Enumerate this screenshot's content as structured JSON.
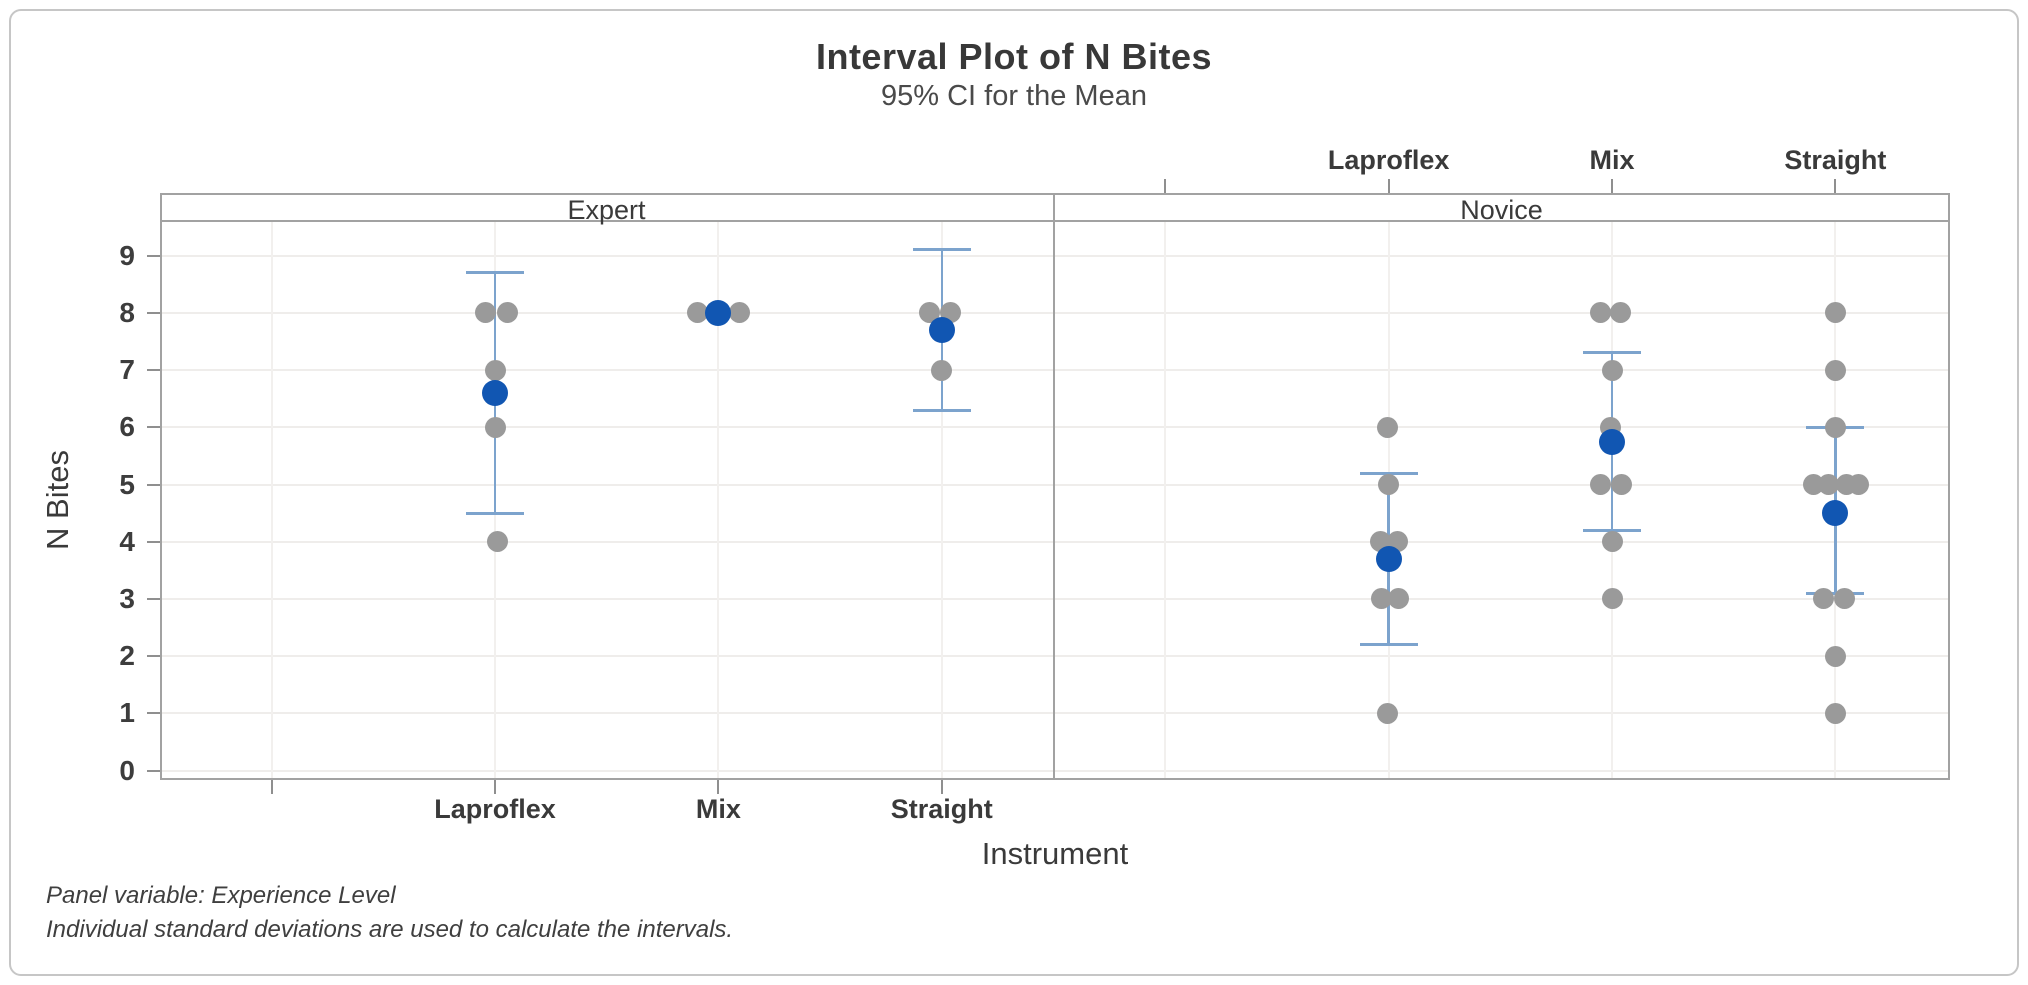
{
  "figure": {
    "title": "Interval Plot of N Bites",
    "subtitle": "95% CI for the Mean"
  },
  "chart_data": {
    "type": "scatter",
    "variant": "interval-plot-95ci-paneled",
    "title": "Interval Plot of N Bites",
    "subtitle": "95% CI for the Mean",
    "ylabel": "N Bites",
    "xlabel": "Instrument",
    "ylim": [
      0,
      9.6
    ],
    "yticks": [
      0,
      1,
      2,
      3,
      4,
      5,
      6,
      7,
      8,
      9
    ],
    "grid": "light horizontal gridlines at integers, faint vertical gridlines at category slots",
    "legend_position": "none",
    "panels": [
      "Expert",
      "Novice"
    ],
    "panel_variable": "Experience Level",
    "categories": [
      "Laproflex",
      "Mix",
      "Straight"
    ],
    "footnotes": [
      "Panel variable: Experience Level",
      "Individual standard deviations are used to calculate the intervals."
    ],
    "groups": [
      {
        "panel": "Expert",
        "instrument": "Laproflex",
        "points": [
          {
            "v": 8,
            "dx": -10
          },
          {
            "v": 8,
            "dx": 12
          },
          {
            "v": 7,
            "dx": 0
          },
          {
            "v": 6,
            "dx": 0
          },
          {
            "v": 4,
            "dx": 2
          }
        ],
        "mean": 6.6,
        "ci": [
          4.5,
          8.7
        ]
      },
      {
        "panel": "Expert",
        "instrument": "Mix",
        "points": [
          {
            "v": 8,
            "dx": -21
          },
          {
            "v": 8,
            "dx": 21
          }
        ],
        "mean": 8,
        "ci": [
          8,
          8
        ]
      },
      {
        "panel": "Expert",
        "instrument": "Straight",
        "points": [
          {
            "v": 8,
            "dx": -12
          },
          {
            "v": 8,
            "dx": 9
          },
          {
            "v": 7,
            "dx": 0
          }
        ],
        "mean": 7.7,
        "ci": [
          6.3,
          9.1
        ]
      },
      {
        "panel": "Novice",
        "instrument": "Laproflex",
        "points": [
          {
            "v": 6,
            "dx": -1
          },
          {
            "v": 5,
            "dx": 0
          },
          {
            "v": 4,
            "dx": -8
          },
          {
            "v": 4,
            "dx": 9
          },
          {
            "v": 3,
            "dx": -7
          },
          {
            "v": 3,
            "dx": 10
          },
          {
            "v": 1,
            "dx": -1
          }
        ],
        "mean": 3.7,
        "ci": [
          2.2,
          5.2
        ]
      },
      {
        "panel": "Novice",
        "instrument": "Mix",
        "points": [
          {
            "v": 8,
            "dx": -12
          },
          {
            "v": 8,
            "dx": 8
          },
          {
            "v": 7,
            "dx": 0
          },
          {
            "v": 6,
            "dx": -2
          },
          {
            "v": 5,
            "dx": -12
          },
          {
            "v": 5,
            "dx": 9
          },
          {
            "v": 4,
            "dx": 0
          },
          {
            "v": 3,
            "dx": 0
          }
        ],
        "mean": 5.75,
        "ci": [
          4.2,
          7.3
        ]
      },
      {
        "panel": "Novice",
        "instrument": "Straight",
        "points": [
          {
            "v": 8,
            "dx": 0
          },
          {
            "v": 7,
            "dx": 0
          },
          {
            "v": 6,
            "dx": 0
          },
          {
            "v": 5,
            "dx": -22
          },
          {
            "v": 5,
            "dx": -7
          },
          {
            "v": 5,
            "dx": 11
          },
          {
            "v": 5,
            "dx": 23
          },
          {
            "v": 3,
            "dx": -12
          },
          {
            "v": 3,
            "dx": 9
          },
          {
            "v": 2,
            "dx": 0
          },
          {
            "v": 1,
            "dx": 0
          }
        ],
        "mean": 4.5,
        "ci": [
          3.1,
          6.0
        ]
      }
    ],
    "colors": {
      "mean_point": "#1156b2",
      "data_point": "#9a9a9a",
      "interval_bar": "#7ca3cd",
      "grid_h": "#efedeb",
      "grid_v": "#f2f0ee",
      "axis": "#8f8f8f",
      "panel_border": "#a2a2a2",
      "figure_border": "#c6c6c6",
      "text": "#3b3b3b"
    }
  }
}
